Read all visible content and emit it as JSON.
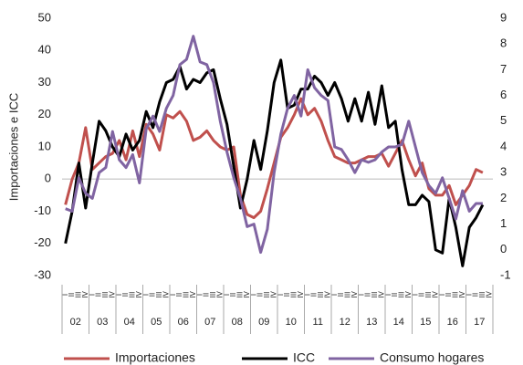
{
  "chart_data": {
    "type": "line",
    "y_label": "Importaciones e ICC",
    "categories": [
      "I",
      "II",
      "III",
      "IV",
      "I",
      "II",
      "III",
      "IV",
      "I",
      "II",
      "III",
      "IV",
      "I",
      "II",
      "III",
      "IV",
      "I",
      "II",
      "III",
      "IV",
      "I",
      "II",
      "III",
      "IV",
      "I",
      "II",
      "III",
      "IV",
      "I",
      "II",
      "III",
      "IV",
      "I",
      "II",
      "III",
      "IV",
      "I",
      "II",
      "III",
      "IV",
      "I",
      "II",
      "III",
      "IV",
      "I",
      "II",
      "III",
      "IV",
      "I",
      "II",
      "III",
      "IV",
      "I",
      "II",
      "III",
      "IV",
      "I",
      "II",
      "III",
      "IV",
      "I",
      "II",
      "III",
      "IV"
    ],
    "year_labels": [
      "02",
      "03",
      "04",
      "05",
      "06",
      "07",
      "08",
      "09",
      "10",
      "11",
      "12",
      "13",
      "14",
      "15",
      "16",
      "17"
    ],
    "ylim": [
      -30,
      50
    ],
    "yticks": [
      -30,
      -20,
      -10,
      0,
      10,
      20,
      30,
      40,
      50
    ],
    "y2lim": [
      -1,
      9
    ],
    "y2ticks": [
      -1,
      0,
      1,
      2,
      3,
      4,
      5,
      6,
      7,
      8,
      9
    ],
    "zero_line": true,
    "series": [
      {
        "name": "Importaciones",
        "color": "#c0504d",
        "values": [
          -8,
          0,
          5,
          16,
          3,
          5,
          7,
          8,
          12,
          6,
          15,
          7,
          17,
          14,
          9,
          20,
          19,
          21,
          18,
          12,
          13,
          15,
          12,
          10,
          9,
          10,
          -5,
          -11,
          -12,
          -10,
          -3,
          5,
          13,
          16,
          20,
          25,
          20,
          22,
          18,
          12,
          7,
          6,
          5,
          5,
          6,
          7,
          7,
          8,
          4,
          8,
          12,
          6,
          1,
          5,
          -3,
          -5,
          -5,
          -2,
          -8,
          -5,
          -2,
          3,
          2,
          null
        ]
      },
      {
        "name": "ICC",
        "color": "#000000",
        "values": [
          -20,
          -10,
          5,
          -9,
          5,
          18,
          15,
          10,
          7,
          14,
          9,
          12,
          21,
          16,
          24,
          30,
          31,
          35,
          28,
          31,
          30,
          33,
          34,
          25,
          17,
          4,
          -9,
          0,
          12,
          3,
          15,
          30,
          37,
          22,
          23,
          28,
          28,
          32,
          30,
          26,
          30,
          25,
          18,
          25,
          18,
          27,
          17,
          29,
          16,
          18,
          3,
          -8,
          -8,
          -5,
          -7,
          -22,
          -23,
          -6,
          -15,
          -27,
          -15,
          -12,
          -8,
          null
        ]
      },
      {
        "name": "Consumo hogares",
        "color": "#8064a2",
        "axis": "y2",
        "values": [
          1.6,
          1.5,
          2.8,
          2.2,
          2.0,
          3.0,
          3.2,
          4.6,
          3.5,
          3.2,
          3.7,
          2.6,
          4.7,
          5.2,
          4.6,
          5.5,
          6.0,
          7.2,
          7.4,
          8.3,
          7.3,
          7.2,
          6.5,
          5.0,
          3.8,
          2.8,
          2.0,
          0.9,
          1.0,
          -0.1,
          0.8,
          3.0,
          4.5,
          5.5,
          6.0,
          5.2,
          7.0,
          6.3,
          6.0,
          5.8,
          4.0,
          3.9,
          3.5,
          3.0,
          3.5,
          3.4,
          3.5,
          3.8,
          4.0,
          4.0,
          4.1,
          5.0,
          4.0,
          3.0,
          2.5,
          2.2,
          2.8,
          2.0,
          1.2,
          2.3,
          1.5,
          1.8,
          1.8,
          null
        ]
      }
    ]
  }
}
